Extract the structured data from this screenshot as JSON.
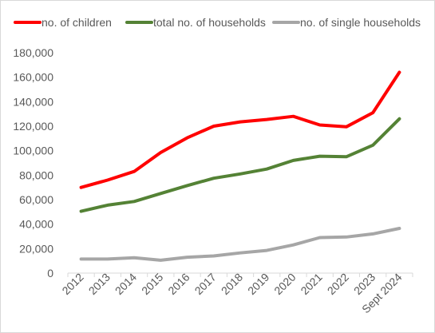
{
  "chart_data": {
    "type": "line",
    "categories": [
      "2012",
      "2013",
      "2014",
      "2015",
      "2016",
      "2017",
      "2018",
      "2019",
      "2020",
      "2021",
      "2022",
      "2023",
      "Sept 2024"
    ],
    "series": [
      {
        "name": "no. of children",
        "color": "#ff0000",
        "values": [
          70000,
          76000,
          83000,
          98500,
          110500,
          120000,
          123500,
          125500,
          128000,
          121000,
          119500,
          131000,
          164000
        ]
      },
      {
        "name": "total no. of households",
        "color": "#548235",
        "values": [
          50500,
          55500,
          58500,
          65000,
          71500,
          77500,
          81000,
          85000,
          92000,
          95500,
          95000,
          104500,
          126000
        ]
      },
      {
        "name": "no. of single households",
        "color": "#a6a6a6",
        "values": [
          11500,
          11500,
          12500,
          10500,
          13000,
          14000,
          16500,
          18500,
          23000,
          29000,
          29500,
          32000,
          36500
        ]
      }
    ],
    "y_ticks": [
      "0",
      "20,000",
      "40,000",
      "60,000",
      "80,000",
      "100,000",
      "120,000",
      "140,000",
      "160,000",
      "180,000"
    ],
    "ylim": [
      0,
      180000
    ],
    "grid": false,
    "legend_position": "top"
  }
}
